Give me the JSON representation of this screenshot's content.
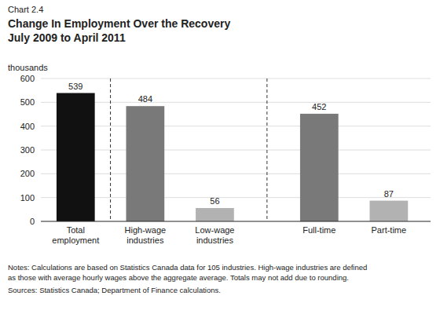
{
  "chart_data": {
    "type": "bar",
    "title": "Change In Employment Over the Recovery",
    "subtitle": "July 2009 to April 2011",
    "ylabel": "thousands",
    "annotations": [
      "Chart 2.4",
      "Notes: Calculations are based on Statistics Canada data for 105 industries. High-wage industries are defined",
      "as those with average hourly wages above the aggregate average. Totals may not add due to rounding.",
      "Sources: Statistics Canada; Department of Finance calculations."
    ],
    "categories": [
      "Total\nemployment",
      "High-wage\nindustries",
      "Low-wage\nindustries",
      "Full-time",
      "Part-time"
    ],
    "values": [
      539,
      484,
      56,
      452,
      87
    ],
    "colors": [
      "#111111",
      "#797979",
      "#b2b2b2",
      "#797979",
      "#b2b2b2"
    ],
    "ylim": [
      0,
      600
    ],
    "yticks": [
      0,
      100,
      200,
      300,
      400,
      500,
      600
    ],
    "grid": true,
    "data_labels": true
  }
}
